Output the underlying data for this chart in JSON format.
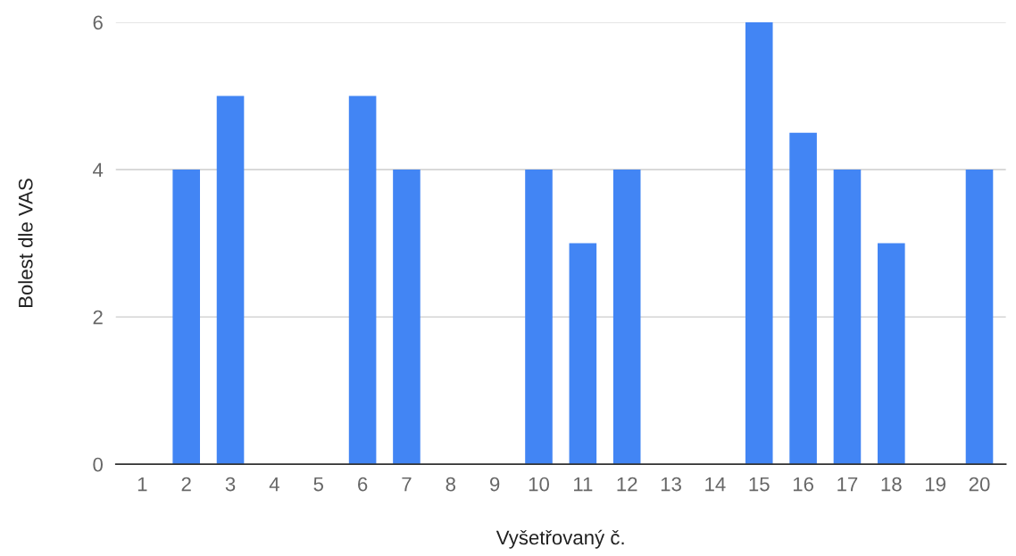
{
  "chart_data": {
    "type": "bar",
    "xlabel": "Vyšetřovaný č.",
    "ylabel": "Bolest dle VAS",
    "categories": [
      "1",
      "2",
      "3",
      "4",
      "5",
      "6",
      "7",
      "8",
      "9",
      "10",
      "11",
      "12",
      "13",
      "14",
      "15",
      "16",
      "17",
      "18",
      "19",
      "20"
    ],
    "values": [
      0,
      4,
      5,
      0,
      0,
      5,
      4,
      0,
      0,
      4,
      3,
      4,
      0,
      0,
      6,
      4.5,
      4,
      3,
      0,
      4
    ],
    "color": "#4285f4",
    "ylim": [
      0,
      6
    ],
    "yticks": [
      0,
      2,
      4,
      6
    ],
    "grid": "y"
  }
}
